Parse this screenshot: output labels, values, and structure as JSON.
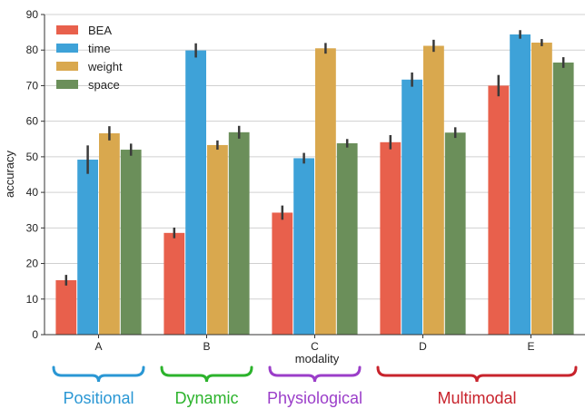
{
  "chart_data": {
    "type": "bar",
    "xlabel": "modality",
    "ylabel": "accuracy",
    "ylim": [
      0,
      90
    ],
    "yticks": [
      0,
      10,
      20,
      30,
      40,
      50,
      60,
      70,
      80,
      90
    ],
    "grid": "horizontal",
    "legend_placement": "top-left",
    "categories": [
      "A",
      "B",
      "C",
      "D",
      "E"
    ],
    "series": [
      {
        "name": "BEA",
        "color": "#e8604c",
        "values": [
          15.3,
          28.6,
          34.3,
          54.1,
          70.0
        ],
        "err": [
          1.5,
          1.5,
          2.0,
          2.0,
          3.0
        ]
      },
      {
        "name": "time",
        "color": "#3ea2d8",
        "values": [
          49.2,
          79.9,
          49.6,
          71.7,
          84.4
        ],
        "err": [
          4.0,
          2.0,
          1.5,
          2.0,
          1.2
        ]
      },
      {
        "name": "weight",
        "color": "#d9a84e",
        "values": [
          56.6,
          53.3,
          80.5,
          81.2,
          82.1
        ],
        "err": [
          2.0,
          1.3,
          1.5,
          1.7,
          1.0
        ]
      },
      {
        "name": "space",
        "color": "#6b8f5a",
        "values": [
          52.0,
          56.9,
          53.8,
          56.8,
          76.5
        ],
        "err": [
          1.7,
          1.8,
          1.2,
          1.5,
          1.5
        ]
      }
    ],
    "groups": [
      {
        "label": "Positional",
        "color": "#2a97d4",
        "categories": [
          "A"
        ]
      },
      {
        "label": "Dynamic",
        "color": "#2cb32c",
        "categories": [
          "B"
        ]
      },
      {
        "label": "Physiological",
        "color": "#9b3ec9",
        "categories": [
          "C"
        ]
      },
      {
        "label": "Multimodal",
        "color": "#c8232c",
        "categories": [
          "D",
          "E"
        ]
      }
    ]
  }
}
